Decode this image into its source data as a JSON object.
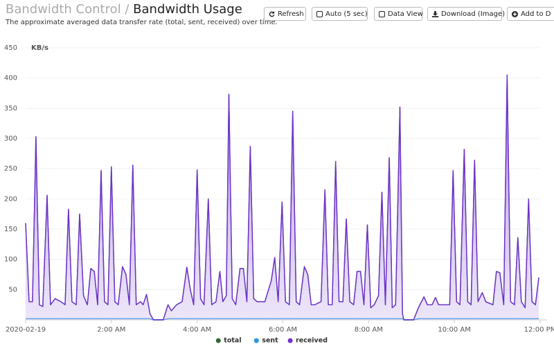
{
  "header": {
    "section": "Bandwidth Control",
    "separator": "/",
    "title": "Bandwidth Usage",
    "subtitle": "The approximate averaged data transfer rate (total, sent, received) over time."
  },
  "buttons": [
    {
      "label": "Refresh"
    },
    {
      "label": "Auto (5 sec)"
    },
    {
      "label": "Data View"
    },
    {
      "label": "Download (Image)"
    },
    {
      "label": "Add to D"
    }
  ],
  "chart_data": {
    "type": "line",
    "ylabel": "KB/s",
    "ylim": [
      0,
      450
    ],
    "yticks": [
      50,
      100,
      150,
      200,
      250,
      300,
      350,
      400,
      450
    ],
    "grid": true,
    "xlim": [
      0,
      12
    ],
    "xticks": [
      {
        "value": 0,
        "label": "2020-02-19"
      },
      {
        "value": 2,
        "label": "2:00 AM"
      },
      {
        "value": 4,
        "label": "4:00 AM"
      },
      {
        "value": 6,
        "label": "6:00 AM"
      },
      {
        "value": 8,
        "label": "8:00 AM"
      },
      {
        "value": 10,
        "label": "10:00 AM"
      },
      {
        "value": 12,
        "label": "12:00 PM"
      }
    ],
    "x": [
      0,
      0.08,
      0.16,
      0.24,
      0.32,
      0.4,
      0.5,
      0.58,
      0.69,
      0.82,
      0.92,
      1.0,
      1.08,
      1.18,
      1.26,
      1.35,
      1.44,
      1.52,
      1.6,
      1.68,
      1.76,
      1.84,
      1.92,
      2.0,
      2.08,
      2.16,
      2.26,
      2.34,
      2.42,
      2.5,
      2.58,
      2.68,
      2.74,
      2.82,
      2.9,
      2.98,
      3.21,
      3.32,
      3.4,
      3.52,
      3.65,
      3.76,
      3.84,
      3.92,
      4.0,
      4.08,
      4.16,
      4.26,
      4.34,
      4.44,
      4.53,
      4.6,
      4.68,
      4.74,
      4.82,
      4.9,
      5.0,
      5.08,
      5.16,
      5.24,
      5.32,
      5.4,
      5.58,
      5.73,
      5.81,
      5.89,
      5.98,
      6.06,
      6.15,
      6.23,
      6.31,
      6.39,
      6.5,
      6.58,
      6.66,
      6.74,
      6.89,
      6.98,
      7.06,
      7.15,
      7.23,
      7.31,
      7.4,
      7.48,
      7.56,
      7.65,
      7.73,
      7.81,
      7.89,
      7.97,
      8.05,
      8.13,
      8.23,
      8.31,
      8.39,
      8.48,
      8.55,
      8.63,
      8.73,
      8.79,
      8.82,
      9.05,
      9.16,
      9.29,
      9.37,
      9.48,
      9.56,
      9.63,
      9.81,
      9.89,
      9.97,
      10.05,
      10.13,
      10.23,
      10.31,
      10.39,
      10.47,
      10.55,
      10.65,
      10.73,
      10.9,
      10.98,
      11.06,
      11.15,
      11.23,
      11.31,
      11.4,
      11.48,
      11.56,
      11.65,
      11.73,
      11.81,
      11.89,
      11.97
    ],
    "legend": "bottom",
    "series": [
      {
        "name": "total",
        "color": "#2f6b34",
        "values": [
          160,
          30,
          30,
          303,
          25,
          22,
          206,
          25,
          35,
          30,
          25,
          183,
          30,
          25,
          175,
          40,
          25,
          85,
          80,
          25,
          247,
          30,
          25,
          253,
          30,
          25,
          88,
          75,
          25,
          256,
          25,
          30,
          25,
          42,
          10,
          0,
          0,
          25,
          15,
          25,
          30,
          87,
          50,
          25,
          248,
          35,
          25,
          200,
          25,
          30,
          80,
          30,
          40,
          373,
          35,
          25,
          85,
          85,
          30,
          287,
          35,
          30,
          30,
          65,
          103,
          30,
          195,
          30,
          25,
          345,
          30,
          25,
          88,
          75,
          25,
          25,
          30,
          215,
          25,
          25,
          262,
          30,
          30,
          167,
          30,
          25,
          80,
          80,
          25,
          157,
          20,
          25,
          40,
          211,
          25,
          268,
          20,
          25,
          352,
          10,
          0,
          0,
          20,
          38,
          25,
          25,
          37,
          25,
          25,
          25,
          247,
          30,
          25,
          282,
          30,
          25,
          264,
          30,
          45,
          30,
          25,
          80,
          78,
          25,
          405,
          30,
          25,
          136,
          30,
          20,
          200,
          30,
          25,
          70
        ]
      },
      {
        "name": "sent",
        "color": "#2399e6",
        "x": [
          0,
          2.9,
          2.98,
          3.21,
          3.32,
          8.79,
          8.82,
          9.05,
          9.16,
          11.97
        ],
        "values": [
          2,
          2,
          0,
          0,
          2,
          2,
          0,
          0,
          2,
          2
        ]
      },
      {
        "name": "received",
        "color": "#6f2fcf",
        "area": true,
        "values": [
          160,
          30,
          30,
          303,
          25,
          22,
          206,
          25,
          35,
          30,
          25,
          183,
          30,
          25,
          175,
          40,
          25,
          85,
          80,
          25,
          247,
          30,
          25,
          253,
          30,
          25,
          88,
          75,
          25,
          256,
          25,
          30,
          25,
          42,
          10,
          0,
          0,
          25,
          15,
          25,
          30,
          87,
          50,
          25,
          248,
          35,
          25,
          200,
          25,
          30,
          80,
          30,
          40,
          373,
          35,
          25,
          85,
          85,
          30,
          287,
          35,
          30,
          30,
          65,
          103,
          30,
          195,
          30,
          25,
          345,
          30,
          25,
          88,
          75,
          25,
          25,
          30,
          215,
          25,
          25,
          262,
          30,
          30,
          167,
          30,
          25,
          80,
          80,
          25,
          157,
          20,
          25,
          40,
          211,
          25,
          268,
          20,
          25,
          352,
          10,
          0,
          0,
          20,
          38,
          25,
          25,
          37,
          25,
          25,
          25,
          247,
          30,
          25,
          282,
          30,
          25,
          264,
          30,
          45,
          30,
          25,
          80,
          78,
          25,
          405,
          30,
          25,
          136,
          30,
          20,
          200,
          30,
          25,
          70
        ]
      }
    ]
  }
}
